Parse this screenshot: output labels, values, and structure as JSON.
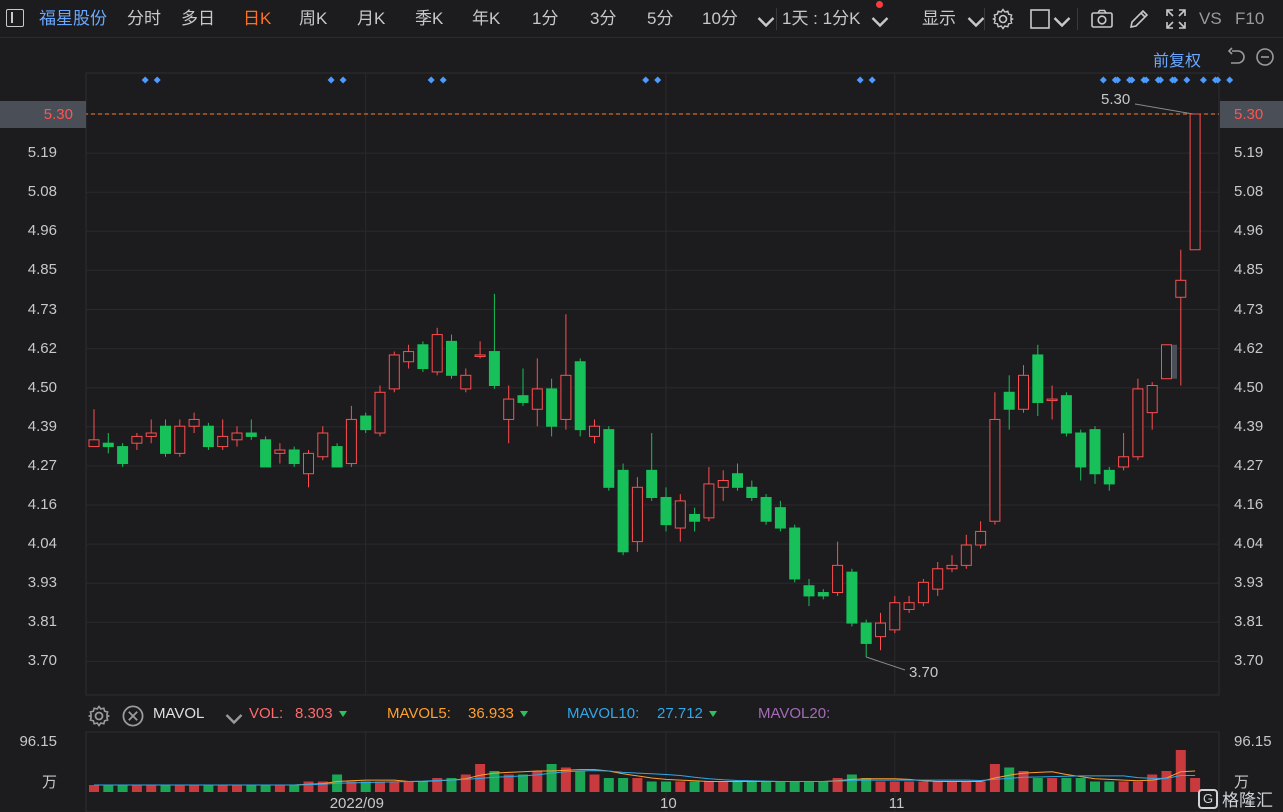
{
  "toolbar": {
    "stock_name": "福星股份",
    "periods": [
      {
        "label": "分时",
        "active": false
      },
      {
        "label": "多日",
        "active": false
      },
      {
        "label": "日K",
        "active": true
      },
      {
        "label": "周K",
        "active": false
      },
      {
        "label": "月K",
        "active": false
      },
      {
        "label": "季K",
        "active": false
      },
      {
        "label": "年K",
        "active": false
      },
      {
        "label": "1分",
        "active": false
      },
      {
        "label": "3分",
        "active": false
      },
      {
        "label": "5分",
        "active": false
      },
      {
        "label": "10分",
        "active": false
      }
    ],
    "interval_select": "1天 : 1分K",
    "display_label": "显示",
    "vs_label": "VS",
    "f10_label": "F10",
    "icons": [
      "panel-toggle-icon",
      "more-periods-chevron-icon",
      "settings-gear-icon",
      "checkbox-icon",
      "camera-icon",
      "pencil-icon",
      "fullscreen-icon"
    ]
  },
  "adjustment": {
    "label": "前复权",
    "icons": [
      "reset-icon",
      "zoom-out-icon"
    ]
  },
  "price_axis": {
    "ticks": [
      "5.30",
      "5.19",
      "5.08",
      "4.96",
      "4.85",
      "4.73",
      "4.62",
      "4.50",
      "4.39",
      "4.27",
      "4.16",
      "4.04",
      "3.93",
      "3.81",
      "3.70"
    ],
    "current_price": "5.30"
  },
  "annotations": {
    "high_label": "5.30",
    "low_label": "3.70"
  },
  "indicator": {
    "name": "MAVOL",
    "vol_label": "VOL:",
    "vol_value": "8.303",
    "ma5_label": "MAVOL5:",
    "ma5_value": "36.933",
    "ma10_label": "MAVOL10:",
    "ma10_value": "27.712",
    "ma20_label": "MAVOL20:",
    "icons": [
      "indicator-settings-icon",
      "indicator-close-icon",
      "indicator-chevron-icon"
    ]
  },
  "volume_axis": {
    "top": "96.15",
    "unit": "万"
  },
  "x_axis": {
    "labels": [
      "2022/09",
      "10",
      "11"
    ]
  },
  "watermark": "格隆汇",
  "colors": {
    "up": "#ff4d4f",
    "down": "#18c05a",
    "accent": "#ff6f23",
    "link": "#6aa8ff",
    "ma5": "#ff9f2e",
    "ma10": "#2fa8e8",
    "ma20": "#a56bb8"
  },
  "chart_data": {
    "type": "candlestick",
    "ylim": [
      3.7,
      5.3
    ],
    "candles": [
      {
        "o": 4.32,
        "c": 4.34,
        "h": 4.43,
        "l": 4.32
      },
      {
        "o": 4.33,
        "c": 4.32,
        "h": 4.36,
        "l": 4.3
      },
      {
        "o": 4.32,
        "c": 4.27,
        "h": 4.33,
        "l": 4.26
      },
      {
        "o": 4.33,
        "c": 4.35,
        "h": 4.36,
        "l": 4.31
      },
      {
        "o": 4.35,
        "c": 4.36,
        "h": 4.4,
        "l": 4.33
      },
      {
        "o": 4.38,
        "c": 4.3,
        "h": 4.4,
        "l": 4.29
      },
      {
        "o": 4.3,
        "c": 4.38,
        "h": 4.4,
        "l": 4.29
      },
      {
        "o": 4.38,
        "c": 4.4,
        "h": 4.42,
        "l": 4.36
      },
      {
        "o": 4.38,
        "c": 4.32,
        "h": 4.39,
        "l": 4.31
      },
      {
        "o": 4.32,
        "c": 4.35,
        "h": 4.4,
        "l": 4.31
      },
      {
        "o": 4.34,
        "c": 4.36,
        "h": 4.38,
        "l": 4.32
      },
      {
        "o": 4.36,
        "c": 4.35,
        "h": 4.4,
        "l": 4.34
      },
      {
        "o": 4.34,
        "c": 4.26,
        "h": 4.35,
        "l": 4.26
      },
      {
        "o": 4.3,
        "c": 4.31,
        "h": 4.33,
        "l": 4.27
      },
      {
        "o": 4.31,
        "c": 4.27,
        "h": 4.32,
        "l": 4.26
      },
      {
        "o": 4.24,
        "c": 4.3,
        "h": 4.31,
        "l": 4.2
      },
      {
        "o": 4.29,
        "c": 4.36,
        "h": 4.38,
        "l": 4.28
      },
      {
        "o": 4.32,
        "c": 4.26,
        "h": 4.33,
        "l": 4.26
      },
      {
        "o": 4.27,
        "c": 4.4,
        "h": 4.44,
        "l": 4.26
      },
      {
        "o": 4.41,
        "c": 4.37,
        "h": 4.42,
        "l": 4.36
      },
      {
        "o": 4.36,
        "c": 4.48,
        "h": 4.5,
        "l": 4.35
      },
      {
        "o": 4.49,
        "c": 4.59,
        "h": 4.6,
        "l": 4.48
      },
      {
        "o": 4.57,
        "c": 4.6,
        "h": 4.62,
        "l": 4.55
      },
      {
        "o": 4.62,
        "c": 4.55,
        "h": 4.63,
        "l": 4.54
      },
      {
        "o": 4.54,
        "c": 4.65,
        "h": 4.67,
        "l": 4.53
      },
      {
        "o": 4.63,
        "c": 4.53,
        "h": 4.65,
        "l": 4.52
      },
      {
        "o": 4.49,
        "c": 4.53,
        "h": 4.55,
        "l": 4.48
      },
      {
        "o": 4.59,
        "c": 4.59,
        "h": 4.63,
        "l": 4.58
      },
      {
        "o": 4.6,
        "c": 4.5,
        "h": 4.77,
        "l": 4.49
      },
      {
        "o": 4.4,
        "c": 4.46,
        "h": 4.5,
        "l": 4.33
      },
      {
        "o": 4.47,
        "c": 4.45,
        "h": 4.55,
        "l": 4.44
      },
      {
        "o": 4.43,
        "c": 4.49,
        "h": 4.58,
        "l": 4.38
      },
      {
        "o": 4.49,
        "c": 4.38,
        "h": 4.52,
        "l": 4.35
      },
      {
        "o": 4.4,
        "c": 4.53,
        "h": 4.71,
        "l": 4.37
      },
      {
        "o": 4.57,
        "c": 4.37,
        "h": 4.58,
        "l": 4.35
      },
      {
        "o": 4.35,
        "c": 4.38,
        "h": 4.4,
        "l": 4.33
      },
      {
        "o": 4.37,
        "c": 4.2,
        "h": 4.38,
        "l": 4.19
      },
      {
        "o": 4.25,
        "c": 4.01,
        "h": 4.27,
        "l": 4.0
      },
      {
        "o": 4.04,
        "c": 4.2,
        "h": 4.23,
        "l": 4.01
      },
      {
        "o": 4.25,
        "c": 4.17,
        "h": 4.36,
        "l": 4.16
      },
      {
        "o": 4.17,
        "c": 4.09,
        "h": 4.2,
        "l": 4.07
      },
      {
        "o": 4.08,
        "c": 4.16,
        "h": 4.18,
        "l": 4.04
      },
      {
        "o": 4.12,
        "c": 4.1,
        "h": 4.14,
        "l": 4.07
      },
      {
        "o": 4.11,
        "c": 4.21,
        "h": 4.26,
        "l": 4.1
      },
      {
        "o": 4.2,
        "c": 4.22,
        "h": 4.25,
        "l": 4.16
      },
      {
        "o": 4.24,
        "c": 4.2,
        "h": 4.27,
        "l": 4.19
      },
      {
        "o": 4.2,
        "c": 4.17,
        "h": 4.22,
        "l": 4.16
      },
      {
        "o": 4.17,
        "c": 4.1,
        "h": 4.18,
        "l": 4.09
      },
      {
        "o": 4.14,
        "c": 4.08,
        "h": 4.16,
        "l": 4.07
      },
      {
        "o": 4.08,
        "c": 3.93,
        "h": 4.09,
        "l": 3.92
      },
      {
        "o": 3.91,
        "c": 3.88,
        "h": 3.93,
        "l": 3.85
      },
      {
        "o": 3.89,
        "c": 3.88,
        "h": 3.9,
        "l": 3.87
      },
      {
        "o": 3.89,
        "c": 3.97,
        "h": 4.04,
        "l": 3.88
      },
      {
        "o": 3.95,
        "c": 3.8,
        "h": 3.96,
        "l": 3.79
      },
      {
        "o": 3.8,
        "c": 3.74,
        "h": 3.81,
        "l": 3.7
      },
      {
        "o": 3.76,
        "c": 3.8,
        "h": 3.83,
        "l": 3.72
      },
      {
        "o": 3.78,
        "c": 3.86,
        "h": 3.88,
        "l": 3.77
      },
      {
        "o": 3.84,
        "c": 3.86,
        "h": 3.88,
        "l": 3.83
      },
      {
        "o": 3.86,
        "c": 3.92,
        "h": 3.93,
        "l": 3.85
      },
      {
        "o": 3.9,
        "c": 3.96,
        "h": 3.98,
        "l": 3.88
      },
      {
        "o": 3.96,
        "c": 3.97,
        "h": 4.0,
        "l": 3.95
      },
      {
        "o": 3.97,
        "c": 4.03,
        "h": 4.06,
        "l": 3.96
      },
      {
        "o": 4.03,
        "c": 4.07,
        "h": 4.1,
        "l": 4.02
      },
      {
        "o": 4.1,
        "c": 4.4,
        "h": 4.48,
        "l": 4.09
      },
      {
        "o": 4.48,
        "c": 4.43,
        "h": 4.53,
        "l": 4.37
      },
      {
        "o": 4.43,
        "c": 4.53,
        "h": 4.56,
        "l": 4.42
      },
      {
        "o": 4.59,
        "c": 4.45,
        "h": 4.62,
        "l": 4.41
      },
      {
        "o": 4.46,
        "c": 4.46,
        "h": 4.5,
        "l": 4.4
      },
      {
        "o": 4.47,
        "c": 4.36,
        "h": 4.48,
        "l": 4.35
      },
      {
        "o": 4.36,
        "c": 4.26,
        "h": 4.37,
        "l": 4.22
      },
      {
        "o": 4.37,
        "c": 4.24,
        "h": 4.38,
        "l": 4.21
      },
      {
        "o": 4.25,
        "c": 4.21,
        "h": 4.26,
        "l": 4.19
      },
      {
        "o": 4.26,
        "c": 4.29,
        "h": 4.36,
        "l": 4.25
      },
      {
        "o": 4.29,
        "c": 4.49,
        "h": 4.52,
        "l": 4.28
      },
      {
        "o": 4.42,
        "c": 4.5,
        "h": 4.51,
        "l": 4.37
      },
      {
        "o": 4.52,
        "c": 4.62,
        "h": 4.62,
        "l": 4.52
      },
      {
        "o": 4.76,
        "c": 4.81,
        "h": 4.9,
        "l": 4.5
      },
      {
        "o": 4.9,
        "c": 5.3,
        "h": 5.3,
        "l": 4.9
      }
    ],
    "gap_boxes": [
      {
        "from_candle": 75,
        "low": 4.52,
        "high": 4.62
      },
      {
        "from_candle": 77,
        "low": 4.9,
        "high": 5.3
      }
    ],
    "volume": [
      2,
      2,
      2,
      2,
      2,
      2,
      2,
      2,
      2,
      2,
      2,
      2,
      2,
      2,
      2,
      3,
      3,
      5,
      3,
      3,
      3,
      3,
      3,
      3,
      4,
      4,
      5,
      8,
      6,
      5,
      5,
      6,
      8,
      7,
      6,
      5,
      4,
      4,
      4,
      3,
      3,
      3,
      3,
      3,
      3,
      3,
      3,
      3,
      3,
      3,
      3,
      3,
      4,
      5,
      4,
      3,
      3,
      3,
      3,
      3,
      3,
      3,
      3,
      8,
      7,
      6,
      4,
      4,
      4,
      4,
      3,
      3,
      3,
      3,
      5,
      6,
      12,
      4
    ],
    "volume_max": 96.15,
    "event_markers": [
      4,
      17,
      24,
      39,
      54,
      71,
      72,
      73,
      74,
      75,
      76,
      78,
      79
    ],
    "xlabels": [
      {
        "label": "2022/09",
        "index": 19
      },
      {
        "label": "10",
        "index": 40
      },
      {
        "label": "11",
        "index": 56
      }
    ]
  }
}
